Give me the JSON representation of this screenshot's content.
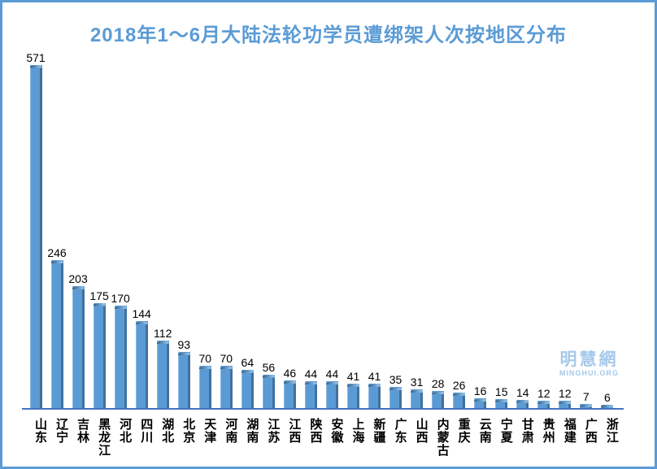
{
  "title": "2018年1～6月大陆法轮功学员遭绑架人次按地区分布",
  "watermark": {
    "name": "明慧網",
    "domain": "MINGHUI.ORG"
  },
  "colors": {
    "frame_border": "#5b9bd5",
    "title_text": "#5b9bd5",
    "background": "#ffffff",
    "bar_face": "#5b9bd5",
    "bar_edge_dark": "#41719c",
    "bar_edge_light": "#8ab8e2",
    "cap_dark": "#2f5d84",
    "cap_light": "#8abae3",
    "axis_line": "#4472c4",
    "value_label": "#000000",
    "category_label": "#000000",
    "watermark_text": "#a6c9ea"
  },
  "chart_data": {
    "type": "bar",
    "title": "2018年1～6月大陆法轮功学员遭绑架人次按地区分布",
    "categories": [
      "山东",
      "辽宁",
      "吉林",
      "黑龙江",
      "河北",
      "四川",
      "湖北",
      "北京",
      "天津",
      "河南",
      "湖南",
      "江苏",
      "江西",
      "陕西",
      "安徽",
      "上海",
      "新疆",
      "广东",
      "山西",
      "内蒙古",
      "重庆",
      "云南",
      "宁夏",
      "甘肃",
      "贵州",
      "福建",
      "广西",
      "浙江"
    ],
    "values": [
      571,
      246,
      203,
      175,
      170,
      144,
      112,
      93,
      70,
      70,
      64,
      56,
      46,
      44,
      44,
      41,
      41,
      35,
      31,
      28,
      26,
      16,
      15,
      14,
      12,
      12,
      7,
      6
    ],
    "value_labels_shown": true,
    "xlabel": "",
    "ylabel": "",
    "ylim": [
      0,
      600
    ],
    "grid": false,
    "legend": "none",
    "orientation": "vertical",
    "category_label_writing": "vertical"
  }
}
